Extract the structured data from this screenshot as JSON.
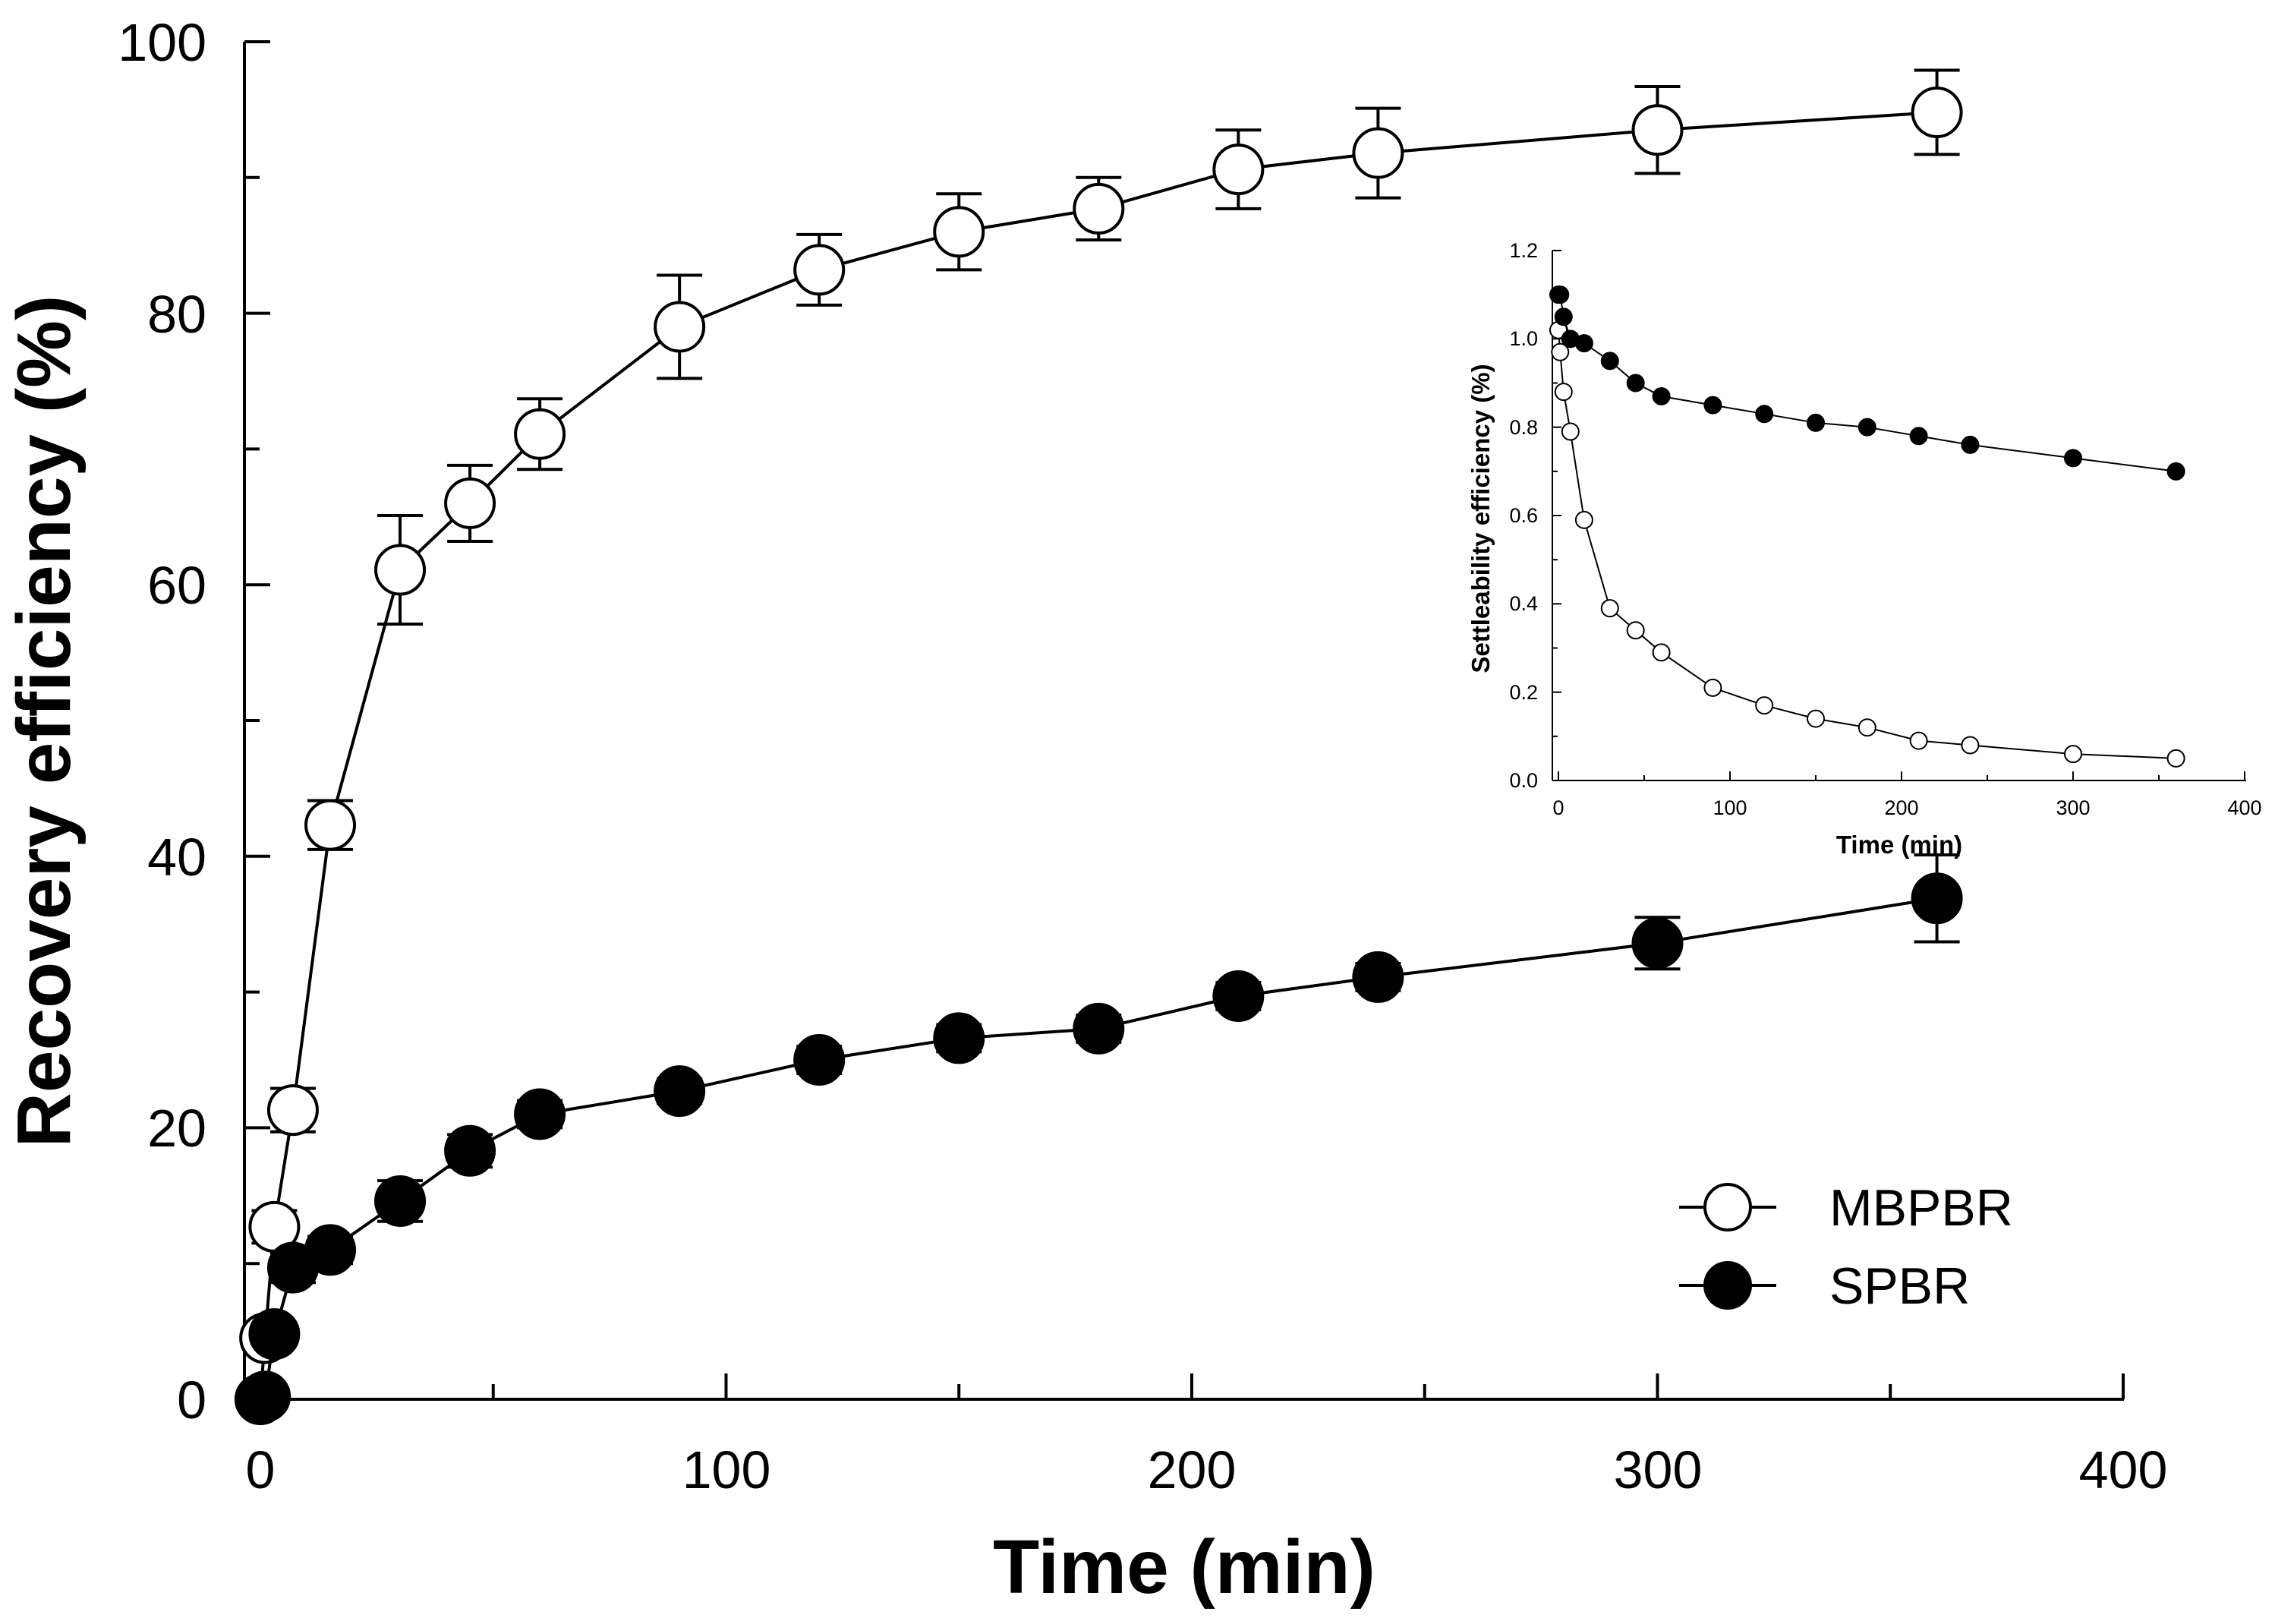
{
  "chart_data": [
    {
      "type": "line",
      "title": "",
      "xlabel": "Time (min)",
      "ylabel": "Recovery efficiency (%)",
      "xlim": [
        0,
        400
      ],
      "ylim": [
        0,
        100
      ],
      "xticks": [
        "0",
        "100",
        "200",
        "300",
        "400"
      ],
      "yticks": [
        "0",
        "20",
        "40",
        "60",
        "80",
        "100"
      ],
      "x": [
        0,
        1,
        3,
        7,
        15,
        30,
        45,
        60,
        90,
        120,
        150,
        180,
        210,
        240,
        300,
        360
      ],
      "series": [
        {
          "name": "MBPBR",
          "marker": "open-circle",
          "values": [
            0,
            4.5,
            12.7,
            21.3,
            42.3,
            61.1,
            66.0,
            71.1,
            79.0,
            83.2,
            86.0,
            87.7,
            90.6,
            91.8,
            93.5,
            94.8
          ],
          "error": [
            0,
            0.8,
            1.2,
            1.6,
            1.8,
            4.0,
            2.8,
            2.6,
            3.8,
            2.6,
            2.8,
            2.3,
            2.9,
            3.3,
            3.2,
            3.1
          ]
        },
        {
          "name": "SPBR",
          "marker": "filled-circle",
          "values": [
            0,
            0.2,
            4.8,
            9.7,
            11.0,
            14.6,
            18.3,
            21.0,
            22.7,
            25.0,
            26.6,
            27.3,
            29.7,
            31.1,
            33.6,
            36.9
          ],
          "error": [
            0,
            0.2,
            0.6,
            1.1,
            1.0,
            1.5,
            1.2,
            1.0,
            0.9,
            1.0,
            1.0,
            1.0,
            1.0,
            1.0,
            1.9,
            3.2
          ]
        }
      ],
      "legend": {
        "position": "bottom-right",
        "entries": [
          "MBPBR",
          "SPBR"
        ]
      }
    },
    {
      "type": "line",
      "title": "",
      "xlabel": "Time (min)",
      "ylabel": "Settleability efficiency (%)",
      "xlim": [
        0,
        400
      ],
      "ylim": [
        0,
        1.2
      ],
      "xticks": [
        "0",
        "100",
        "200",
        "300",
        "400"
      ],
      "yticks": [
        "0.0",
        "0.2",
        "0.4",
        "0.6",
        "0.8",
        "1.0",
        "1.2"
      ],
      "x": [
        0,
        1,
        3,
        7,
        15,
        30,
        45,
        60,
        90,
        120,
        150,
        180,
        210,
        240,
        300,
        360
      ],
      "series": [
        {
          "name": "MBPBR",
          "marker": "open-circle",
          "values": [
            1.02,
            0.97,
            0.88,
            0.79,
            0.59,
            0.39,
            0.34,
            0.29,
            0.21,
            0.17,
            0.14,
            0.12,
            0.09,
            0.08,
            0.06,
            0.05
          ]
        },
        {
          "name": "SPBR",
          "marker": "filled-circle",
          "values": [
            1.1,
            1.1,
            1.05,
            1.0,
            0.99,
            0.95,
            0.9,
            0.87,
            0.85,
            0.83,
            0.81,
            0.8,
            0.78,
            0.76,
            0.73,
            0.7
          ]
        }
      ]
    }
  ]
}
